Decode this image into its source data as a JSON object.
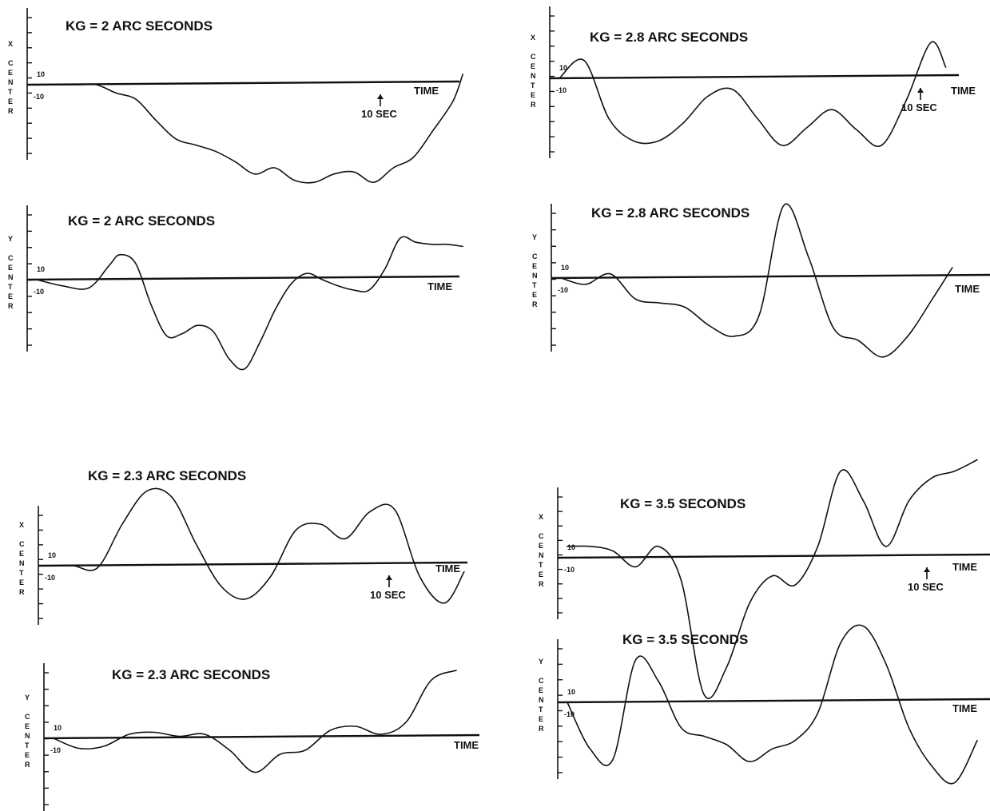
{
  "figure": {
    "background": "#ffffff",
    "ink": "#111111"
  },
  "chart_data": [
    {
      "type": "line",
      "title": "KG = 2 ARC SECONDS",
      "ylabel": "X CENTER",
      "xlabel": "TIME",
      "tick_labels": [
        "10",
        "-10"
      ],
      "marker": "10 SEC",
      "marker_x": 75,
      "ylim": [
        -55,
        35
      ],
      "series": [
        {
          "x": [
            0,
            8,
            12,
            16,
            20,
            24,
            28,
            32,
            36,
            40,
            44,
            48,
            52,
            56,
            60,
            64,
            68,
            72,
            76,
            80,
            84,
            86
          ],
          "values": [
            0,
            0,
            0,
            -4,
            -7,
            -17,
            -26,
            -29,
            -32,
            -37,
            -43,
            -40,
            -46,
            -47,
            -43,
            -42,
            -47,
            -40,
            -35,
            -22,
            -8,
            5
          ]
        }
      ]
    },
    {
      "type": "line",
      "title": "KG = 2 ARC SECONDS",
      "ylabel": "Y CENTER",
      "xlabel": "TIME",
      "tick_labels": [
        "10",
        "-10"
      ],
      "ylim": [
        -45,
        30
      ],
      "series": [
        {
          "x": [
            0,
            5,
            10,
            14,
            16,
            19,
            22,
            25,
            28,
            31,
            34,
            37,
            40,
            43,
            46,
            49,
            52,
            55,
            58,
            61,
            64,
            67,
            70,
            73,
            76,
            79,
            82
          ],
          "values": [
            0,
            -3,
            -4,
            7,
            12,
            8,
            -12,
            -27,
            -26,
            -22,
            -25,
            -38,
            -43,
            -30,
            -14,
            -2,
            3,
            0,
            -3,
            -5,
            -5,
            5,
            20,
            18,
            17,
            17,
            16
          ]
        }
      ]
    },
    {
      "type": "line",
      "title": "KG = 2.3 ARC SECONDS",
      "ylabel": "X CENTER",
      "xlabel": "TIME",
      "tick_labels": [
        "10",
        "-10"
      ],
      "marker": "10 SEC",
      "marker_x": 75,
      "ylim": [
        -25,
        40
      ],
      "series": [
        {
          "x": [
            0,
            5,
            10,
            15,
            20,
            25,
            30,
            35,
            40,
            45,
            50,
            55,
            60,
            65,
            70,
            75,
            80,
            84
          ],
          "values": [
            0,
            0,
            -1,
            20,
            36,
            33,
            10,
            -10,
            -16,
            -5,
            17,
            20,
            13,
            26,
            27,
            -5,
            -18,
            -3
          ]
        }
      ]
    },
    {
      "type": "line",
      "title": "KG = 2.3 ARC SECONDS",
      "ylabel": "Y CENTER",
      "xlabel": "TIME",
      "tick_labels": [
        "10",
        "-10"
      ],
      "ylim": [
        -25,
        40
      ],
      "series": [
        {
          "x": [
            0,
            5,
            10,
            15,
            20,
            25,
            30,
            35,
            40,
            45,
            50,
            55,
            60,
            65,
            70,
            75,
            80
          ],
          "values": [
            0,
            -5,
            -4,
            2,
            3,
            1,
            2,
            -6,
            -17,
            -8,
            -6,
            4,
            6,
            2,
            8,
            29,
            34
          ]
        }
      ]
    },
    {
      "type": "line",
      "title": "KG = 2.8 ARC SECONDS",
      "ylabel": "X CENTER",
      "xlabel": "TIME",
      "tick_labels": [
        "10",
        "-10"
      ],
      "marker": "10 SEC",
      "marker_x": 75,
      "ylim": [
        -35,
        30
      ],
      "series": [
        {
          "x": [
            0,
            5,
            10,
            15,
            20,
            25,
            30,
            35,
            40,
            45,
            50,
            55,
            60,
            65,
            70,
            75,
            78
          ],
          "values": [
            0,
            8,
            -18,
            -28,
            -28,
            -20,
            -8,
            -5,
            -18,
            -30,
            -22,
            -14,
            -23,
            -30,
            -10,
            16,
            5
          ]
        }
      ]
    },
    {
      "type": "line",
      "title": "KG = 2.8 ARC SECONDS",
      "ylabel": "Y CENTER",
      "xlabel": "TIME",
      "tick_labels": [
        "10",
        "-10"
      ],
      "ylim": [
        -35,
        40
      ],
      "series": [
        {
          "x": [
            0,
            5,
            10,
            15,
            20,
            25,
            30,
            35,
            40,
            45,
            50,
            55,
            60,
            65,
            70,
            75,
            79
          ],
          "values": [
            0,
            -3,
            2,
            -10,
            -12,
            -14,
            -23,
            -28,
            -18,
            35,
            10,
            -24,
            -30,
            -38,
            -28,
            -10,
            5
          ]
        }
      ]
    },
    {
      "type": "line",
      "title": "KG = 3.5 SECONDS",
      "ylabel": "X CENTER",
      "xlabel": "TIME",
      "tick_labels": [
        "10",
        "-10"
      ],
      "marker": "10 SEC",
      "marker_x": 75,
      "ylim": [
        -65,
        40
      ],
      "series": [
        {
          "x": [
            0,
            5,
            10,
            15,
            20,
            25,
            30,
            35,
            40,
            45,
            50,
            55,
            60,
            65,
            70,
            75,
            80,
            85,
            90
          ],
          "values": [
            5,
            5,
            3,
            -4,
            5,
            -10,
            -60,
            -48,
            -20,
            -8,
            -12,
            5,
            38,
            25,
            5,
            25,
            35,
            38,
            43
          ]
        }
      ]
    },
    {
      "type": "line",
      "title": "KG = 3.5 SECONDS",
      "ylabel": "Y CENTER",
      "xlabel": "TIME",
      "tick_labels": [
        "10",
        "-10"
      ],
      "ylim": [
        -40,
        35
      ],
      "series": [
        {
          "x": [
            0,
            5,
            10,
            15,
            20,
            25,
            30,
            35,
            40,
            45,
            50,
            55,
            60,
            65,
            70,
            75,
            80,
            85,
            90
          ],
          "values": [
            0,
            -22,
            -27,
            20,
            10,
            -12,
            -16,
            -20,
            -28,
            -22,
            -18,
            -5,
            28,
            36,
            18,
            -12,
            -30,
            -38,
            -18
          ]
        }
      ]
    }
  ]
}
